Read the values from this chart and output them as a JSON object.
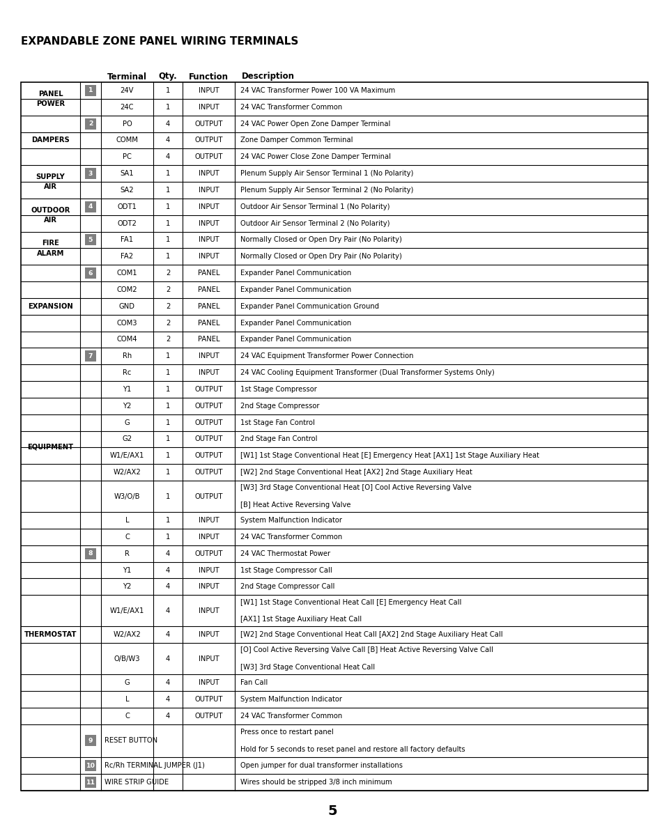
{
  "title": "EXPANDABLE ZONE PANEL WIRING TERMINALS",
  "header": [
    "Terminal",
    "Qty.",
    "Function",
    "Description"
  ],
  "page_num": "5",
  "sections": [
    {
      "group_label": "PANEL\nPOWER",
      "badge": "1",
      "special": false,
      "rows": [
        {
          "terminal": "24V",
          "qty": "1",
          "function": "INPUT",
          "description": "24 VAC Transformer Power 100 VA Maximum"
        },
        {
          "terminal": "24C",
          "qty": "1",
          "function": "INPUT",
          "description": "24 VAC Transformer Common"
        }
      ]
    },
    {
      "group_label": "DAMPERS",
      "badge": "2",
      "special": false,
      "rows": [
        {
          "terminal": "PO",
          "qty": "4",
          "function": "OUTPUT",
          "description": "24 VAC Power Open Zone Damper Terminal"
        },
        {
          "terminal": "COMM",
          "qty": "4",
          "function": "OUTPUT",
          "description": "Zone Damper Common Terminal"
        },
        {
          "terminal": "PC",
          "qty": "4",
          "function": "OUTPUT",
          "description": "24 VAC Power Close Zone Damper Terminal"
        }
      ]
    },
    {
      "group_label": "SUPPLY\nAIR",
      "badge": "3",
      "special": false,
      "rows": [
        {
          "terminal": "SA1",
          "qty": "1",
          "function": "INPUT",
          "description": "Plenum Supply Air Sensor Terminal 1 (No Polarity)"
        },
        {
          "terminal": "SA2",
          "qty": "1",
          "function": "INPUT",
          "description": "Plenum Supply Air Sensor Terminal 2 (No Polarity)"
        }
      ]
    },
    {
      "group_label": "OUTDOOR\nAIR",
      "badge": "4",
      "special": false,
      "rows": [
        {
          "terminal": "ODT1",
          "qty": "1",
          "function": "INPUT",
          "description": "Outdoor Air Sensor Terminal 1 (No Polarity)"
        },
        {
          "terminal": "ODT2",
          "qty": "1",
          "function": "INPUT",
          "description": "Outdoor Air Sensor Terminal 2 (No Polarity)"
        }
      ]
    },
    {
      "group_label": "FIRE\nALARM",
      "badge": "5",
      "special": false,
      "rows": [
        {
          "terminal": "FA1",
          "qty": "1",
          "function": "INPUT",
          "description": "Normally Closed or Open Dry Pair (No Polarity)"
        },
        {
          "terminal": "FA2",
          "qty": "1",
          "function": "INPUT",
          "description": "Normally Closed or Open Dry Pair (No Polarity)"
        }
      ]
    },
    {
      "group_label": "EXPANSION",
      "badge": "6",
      "special": false,
      "rows": [
        {
          "terminal": "COM1",
          "qty": "2",
          "function": "PANEL",
          "description": "Expander Panel Communication"
        },
        {
          "terminal": "COM2",
          "qty": "2",
          "function": "PANEL",
          "description": "Expander Panel Communication"
        },
        {
          "terminal": "GND",
          "qty": "2",
          "function": "PANEL",
          "description": "Expander Panel Communication Ground"
        },
        {
          "terminal": "COM3",
          "qty": "2",
          "function": "PANEL",
          "description": "Expander Panel Communication"
        },
        {
          "terminal": "COM4",
          "qty": "2",
          "function": "PANEL",
          "description": "Expander Panel Communication"
        }
      ]
    },
    {
      "group_label": "EQUIPMENT",
      "badge": "7",
      "special": false,
      "rows": [
        {
          "terminal": "Rh",
          "qty": "1",
          "function": "INPUT",
          "description": "24 VAC Equipment Transformer Power Connection"
        },
        {
          "terminal": "Rc",
          "qty": "1",
          "function": "INPUT",
          "description": "24 VAC Cooling Equipment Transformer (Dual Transformer Systems Only)"
        },
        {
          "terminal": "Y1",
          "qty": "1",
          "function": "OUTPUT",
          "description": "1st Stage Compressor"
        },
        {
          "terminal": "Y2",
          "qty": "1",
          "function": "OUTPUT",
          "description": "2nd Stage Compressor"
        },
        {
          "terminal": "G",
          "qty": "1",
          "function": "OUTPUT",
          "description": "1st Stage Fan Control"
        },
        {
          "terminal": "G2",
          "qty": "1",
          "function": "OUTPUT",
          "description": "2nd Stage Fan Control"
        },
        {
          "terminal": "W1/E/AX1",
          "qty": "1",
          "function": "OUTPUT",
          "description": "[W1] 1st Stage Conventional Heat [E] Emergency Heat [AX1] 1st Stage Auxiliary Heat"
        },
        {
          "terminal": "W2/AX2",
          "qty": "1",
          "function": "OUTPUT",
          "description": "[W2] 2nd Stage Conventional Heat [AX2] 2nd Stage Auxiliary Heat"
        },
        {
          "terminal": "W3/O/B",
          "qty": "1",
          "function": "OUTPUT",
          "description": "[W3] 3rd Stage Conventional Heat [O] Cool Active Reversing Valve\n[B] Heat Active Reversing Valve"
        },
        {
          "terminal": "L",
          "qty": "1",
          "function": "INPUT",
          "description": "System Malfunction Indicator"
        },
        {
          "terminal": "C",
          "qty": "1",
          "function": "INPUT",
          "description": "24 VAC Transformer Common"
        }
      ]
    },
    {
      "group_label": "THERMOSTAT",
      "badge": "8",
      "special": false,
      "rows": [
        {
          "terminal": "R",
          "qty": "4",
          "function": "OUTPUT",
          "description": "24 VAC Thermostat Power"
        },
        {
          "terminal": "Y1",
          "qty": "4",
          "function": "INPUT",
          "description": "1st Stage Compressor Call"
        },
        {
          "terminal": "Y2",
          "qty": "4",
          "function": "INPUT",
          "description": "2nd Stage Compressor Call"
        },
        {
          "terminal": "W1/E/AX1",
          "qty": "4",
          "function": "INPUT",
          "description": "[W1] 1st Stage Conventional Heat Call [E] Emergency Heat Call\n[AX1] 1st Stage Auxiliary Heat Call"
        },
        {
          "terminal": "W2/AX2",
          "qty": "4",
          "function": "INPUT",
          "description": "[W2] 2nd Stage Conventional Heat Call [AX2] 2nd Stage Auxiliary Heat Call"
        },
        {
          "terminal": "O/B/W3",
          "qty": "4",
          "function": "INPUT",
          "description": "[O] Cool Active Reversing Valve Call [B] Heat Active Reversing Valve Call\n[W3] 3rd Stage Conventional Heat Call"
        },
        {
          "terminal": "G",
          "qty": "4",
          "function": "INPUT",
          "description": "Fan Call"
        },
        {
          "terminal": "L",
          "qty": "4",
          "function": "OUTPUT",
          "description": "System Malfunction Indicator"
        },
        {
          "terminal": "C",
          "qty": "4",
          "function": "OUTPUT",
          "description": "24 VAC Transformer Common"
        }
      ]
    },
    {
      "group_label": "",
      "badge": "9",
      "special": true,
      "rows": [
        {
          "terminal": "RESET BUTTON",
          "qty": "",
          "function": "",
          "description": "Press once to restart panel\nHold for 5 seconds to reset panel and restore all factory defaults"
        }
      ]
    },
    {
      "group_label": "",
      "badge": "10",
      "special": true,
      "rows": [
        {
          "terminal": "Rc/Rh TERMINAL JUMPER (J1)",
          "qty": "",
          "function": "",
          "description": "Open jumper for dual transformer installations"
        }
      ]
    },
    {
      "group_label": "",
      "badge": "11",
      "special": true,
      "rows": [
        {
          "terminal": "WIRE STRIP GUIDE",
          "qty": "",
          "function": "",
          "description": "Wires should be stripped 3/8 inch minimum"
        }
      ]
    }
  ],
  "badge_color": "#7f7f7f",
  "badge_text_color": "#ffffff",
  "title_font_size": 11,
  "header_font_size": 8.5,
  "cell_font_size": 7.2
}
